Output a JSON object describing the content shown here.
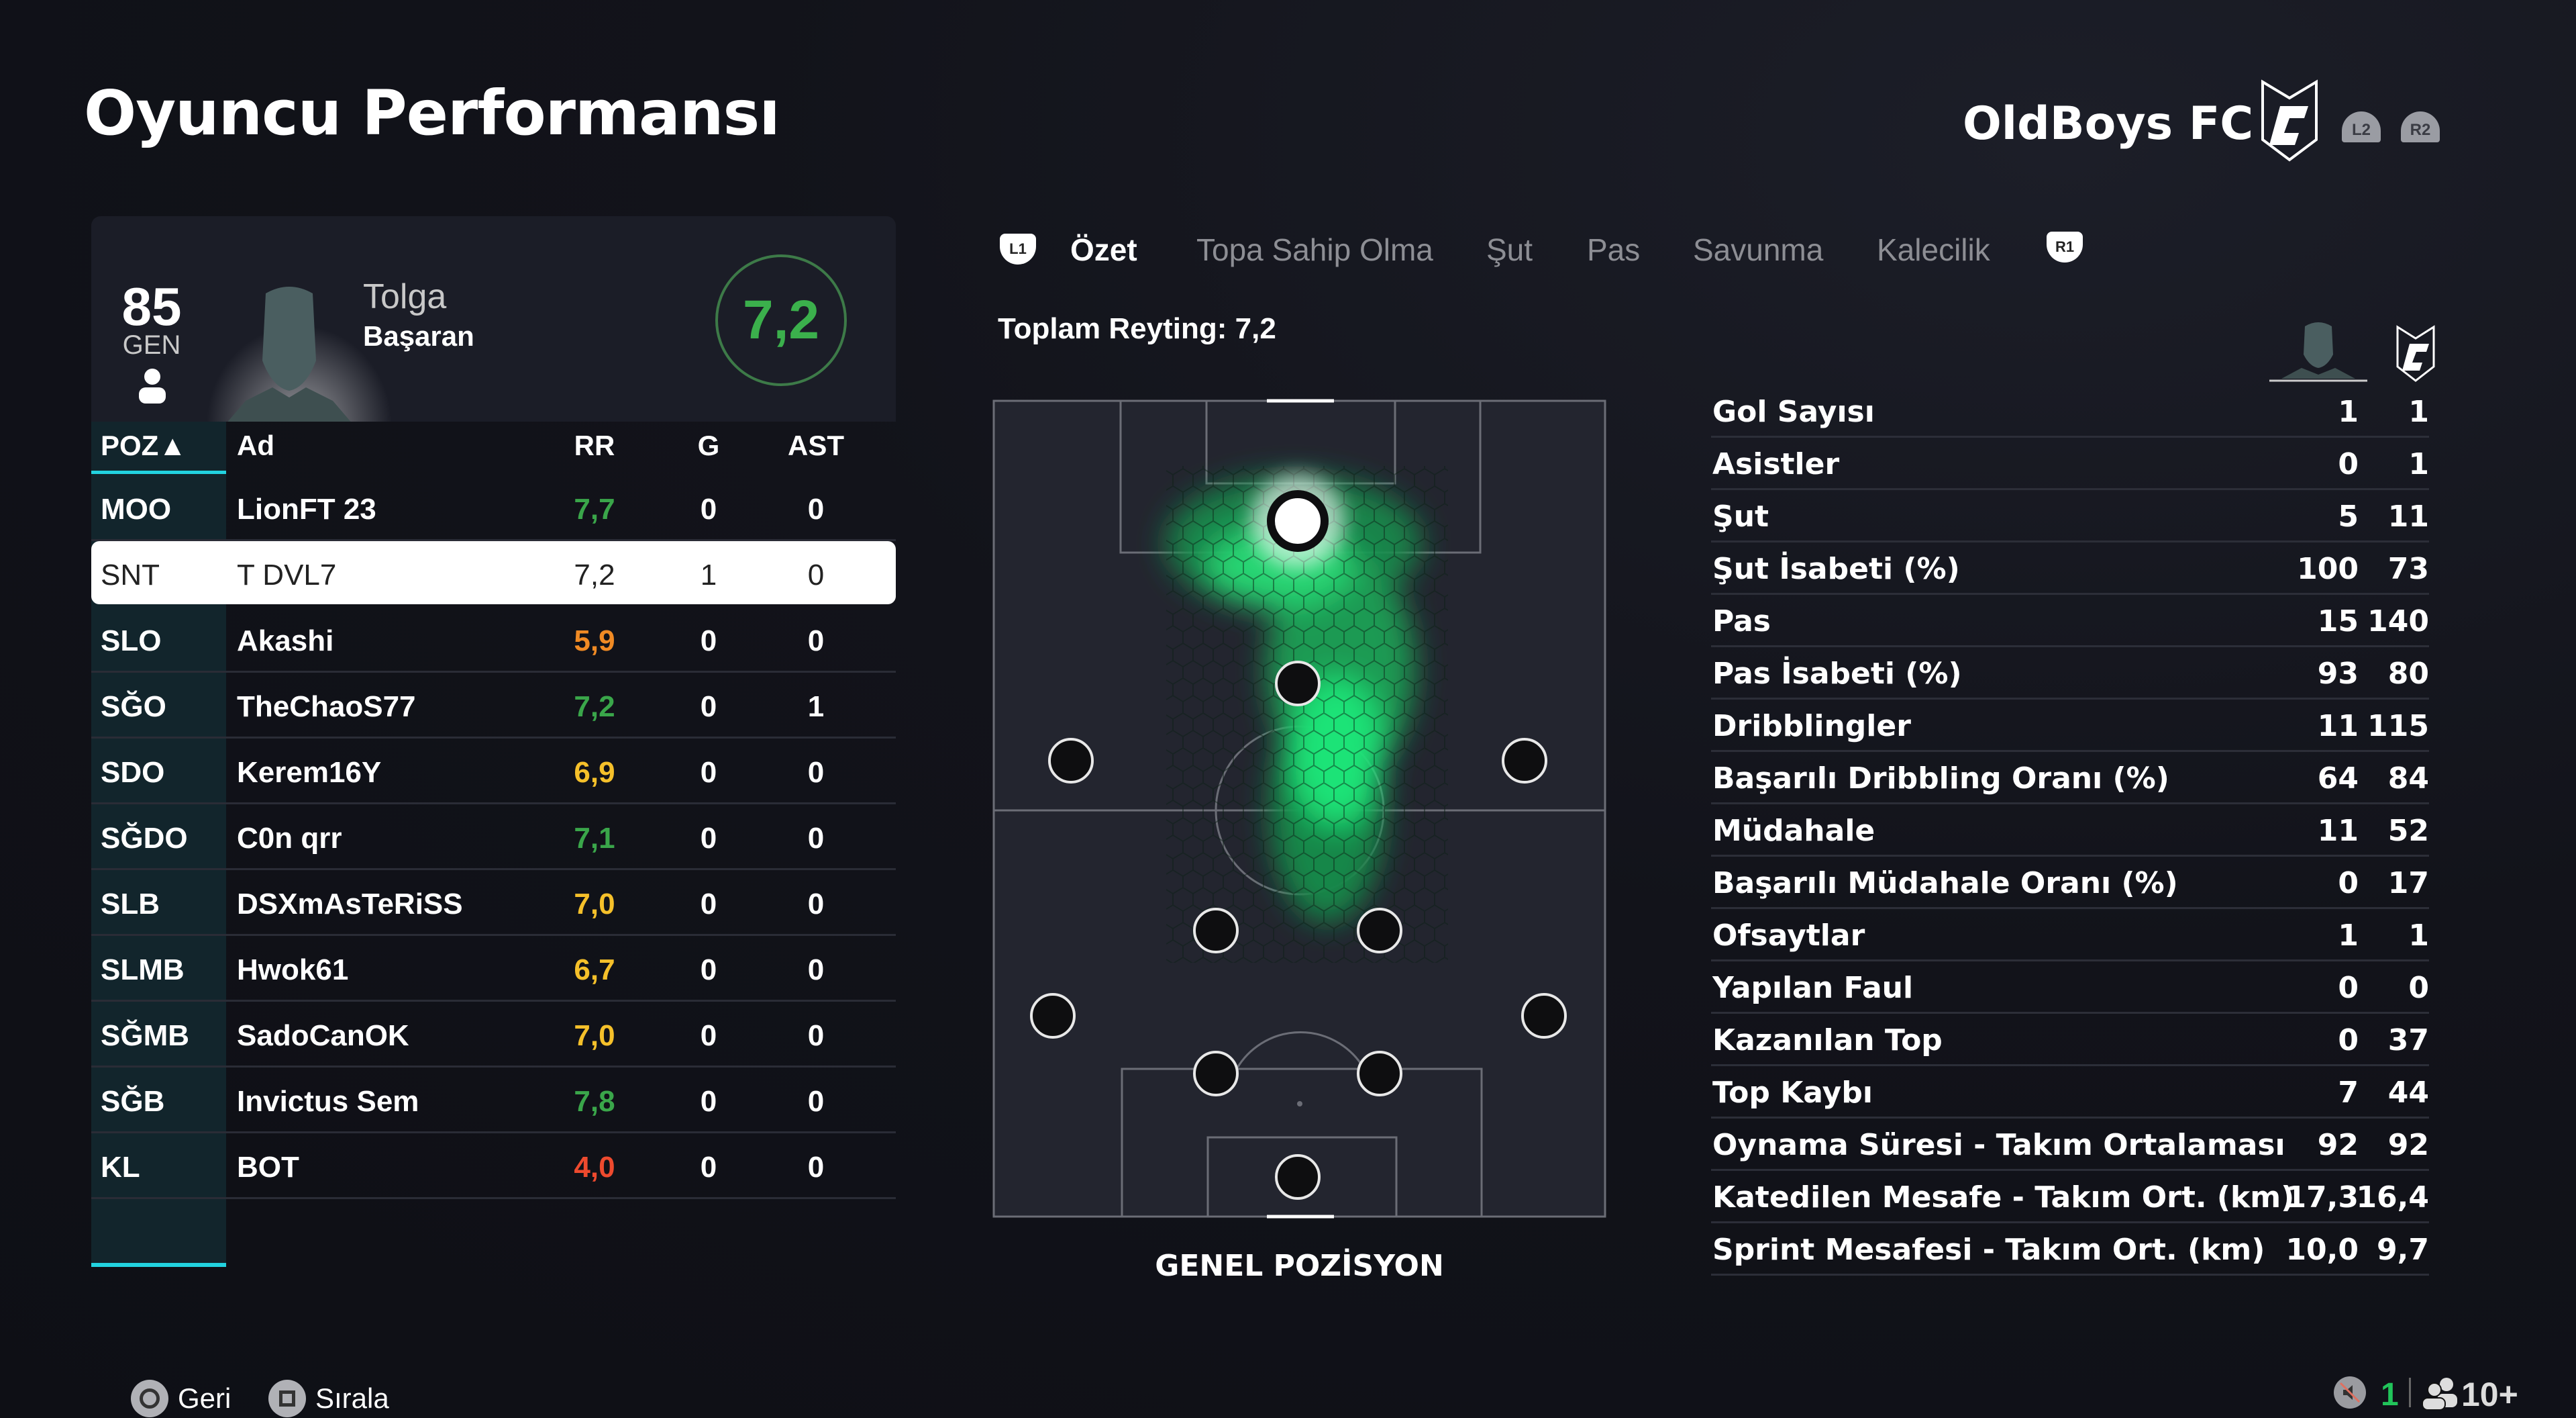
{
  "header": {
    "title": "Oyuncu Performansı",
    "team_name": "OldBoys FC",
    "l2": "L2",
    "r2": "R2"
  },
  "player": {
    "overall": "85",
    "overall_label": "GEN",
    "first_name": "Tolga",
    "last_name": "Başaran",
    "rating": "7,2"
  },
  "table": {
    "columns": {
      "pos": "POZ▲",
      "name": "Ad",
      "rr": "RR",
      "g": "G",
      "ast": "AST"
    },
    "rows": [
      {
        "pos": "MOO",
        "name": "LionFT 23",
        "rr": "7,7",
        "g": "0",
        "ast": "0",
        "color": "#3aa64a"
      },
      {
        "pos": "SNT",
        "name": "T DVL7",
        "rr": "7,2",
        "g": "1",
        "ast": "0",
        "color": "#222222",
        "selected": true
      },
      {
        "pos": "SLO",
        "name": "Akashi",
        "rr": "5,9",
        "g": "0",
        "ast": "0",
        "color": "#f08a24"
      },
      {
        "pos": "SĞO",
        "name": "TheChaoS77",
        "rr": "7,2",
        "g": "0",
        "ast": "1",
        "color": "#3aa64a"
      },
      {
        "pos": "SDO",
        "name": "Kerem16Y",
        "rr": "6,9",
        "g": "0",
        "ast": "0",
        "color": "#f5c02a"
      },
      {
        "pos": "SĞDO",
        "name": "C0n qrr",
        "rr": "7,1",
        "g": "0",
        "ast": "0",
        "color": "#3aa64a"
      },
      {
        "pos": "SLB",
        "name": "DSXmAsTeRiSS",
        "rr": "7,0",
        "g": "0",
        "ast": "0",
        "color": "#f5c02a"
      },
      {
        "pos": "SLMB",
        "name": "Hwok61",
        "rr": "6,7",
        "g": "0",
        "ast": "0",
        "color": "#f5c02a"
      },
      {
        "pos": "SĞMB",
        "name": "SadoCanOK",
        "rr": "7,0",
        "g": "0",
        "ast": "0",
        "color": "#f5c02a"
      },
      {
        "pos": "SĞB",
        "name": "Invictus Sem",
        "rr": "7,8",
        "g": "0",
        "ast": "0",
        "color": "#3aa64a"
      },
      {
        "pos": "KL",
        "name": "BOT",
        "rr": "4,0",
        "g": "0",
        "ast": "0",
        "color": "#ee4a2e"
      }
    ]
  },
  "tabs": {
    "l1": "L1",
    "r1": "R1",
    "items": [
      "Özet",
      "Topa Sahip Olma",
      "Şut",
      "Pas",
      "Savunma",
      "Kalecilik"
    ],
    "active": 0
  },
  "summary": {
    "total_rating": "Toplam Reyting: 7,2",
    "pitch_label": "GENEL POZİSYON"
  },
  "stats": [
    {
      "label": "Gol Sayısı",
      "player": "1",
      "team": "1"
    },
    {
      "label": "Asistler",
      "player": "0",
      "team": "1"
    },
    {
      "label": "Şut",
      "player": "5",
      "team": "11"
    },
    {
      "label": "Şut İsabeti (%)",
      "player": "100",
      "team": "73"
    },
    {
      "label": "Pas",
      "player": "15",
      "team": "140"
    },
    {
      "label": "Pas İsabeti (%)",
      "player": "93",
      "team": "80"
    },
    {
      "label": "Dribblingler",
      "player": "11",
      "team": "115"
    },
    {
      "label": "Başarılı Dribbling Oranı (%)",
      "player": "64",
      "team": "84"
    },
    {
      "label": "Müdahale",
      "player": "11",
      "team": "52"
    },
    {
      "label": "Başarılı Müdahale Oranı (%)",
      "player": "0",
      "team": "17"
    },
    {
      "label": "Ofsaytlar",
      "player": "1",
      "team": "1"
    },
    {
      "label": "Yapılan Faul",
      "player": "0",
      "team": "0"
    },
    {
      "label": "Kazanılan Top",
      "player": "0",
      "team": "37"
    },
    {
      "label": "Top Kaybı",
      "player": "7",
      "team": "44"
    },
    {
      "label": "Oynama Süresi - Takım Ortalaması",
      "player": "92",
      "team": "92"
    },
    {
      "label": "Katedilen Mesafe - Takım Ort. (km)",
      "player": "17,3",
      "team": "16,4"
    },
    {
      "label": "Sprint Mesafesi - Takım Ort. (km)",
      "player": "10,0",
      "team": "9,7"
    }
  ],
  "footer": {
    "back": "Geri",
    "sort": "Sırala",
    "voice_count": "1",
    "players_count": "10+"
  }
}
